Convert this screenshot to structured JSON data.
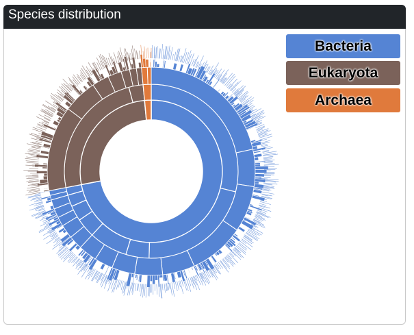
{
  "panel": {
    "title": "Species distribution"
  },
  "colors": {
    "Bacteria": "#5584d4",
    "Eukaryota": "#7b625a",
    "Archaea": "#e07a3c"
  },
  "legend": [
    {
      "label": "Bacteria",
      "color": "#5584d4"
    },
    {
      "label": "Eukaryota",
      "color": "#7b625a"
    },
    {
      "label": "Archaea",
      "color": "#e07a3c"
    }
  ],
  "chart_data": {
    "type": "sunburst",
    "title": "Species distribution",
    "center": "empty",
    "inner_ring": [
      {
        "name": "Bacteria",
        "share": 0.72
      },
      {
        "name": "Eukaryota",
        "share": 0.265
      },
      {
        "name": "Archaea",
        "share": 0.015
      }
    ],
    "ring2": {
      "Bacteria": [
        0.4,
        0.3,
        0.06,
        0.1,
        0.05,
        0.04,
        0.03,
        0.02
      ],
      "Eukaryota": [
        0.9,
        0.1
      ],
      "Archaea": [
        1
      ]
    },
    "ring3": {
      "Bacteria": [
        0.3,
        0.08,
        0.1,
        0.12,
        0.07,
        0.06,
        0.05,
        0.04,
        0.04,
        0.03,
        0.03,
        0.02,
        0.02,
        0.02,
        0.01,
        0.01
      ],
      "Eukaryota": [
        0.5,
        0.2,
        0.1,
        0.08,
        0.05,
        0.04,
        0.03
      ],
      "Archaea": [
        0.6,
        0.4
      ]
    }
  }
}
